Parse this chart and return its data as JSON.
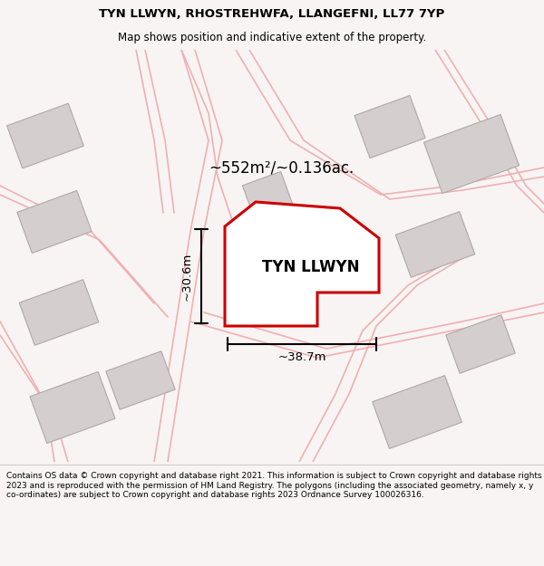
{
  "title_line1": "TYN LLWYN, RHOSTREHWFA, LLANGEFNI, LL77 7YP",
  "title_line2": "Map shows position and indicative extent of the property.",
  "area_label": "~552m²/~0.136ac.",
  "property_name": "TYN LLWYN",
  "dim_height": "~30.6m",
  "dim_width": "~38.7m",
  "footer_text": "Contains OS data © Crown copyright and database right 2021. This information is subject to Crown copyright and database rights 2023 and is reproduced with the permission of HM Land Registry. The polygons (including the associated geometry, namely x, y co-ordinates) are subject to Crown copyright and database rights 2023 Ordnance Survey 100026316.",
  "bg_color": "#f8f4f4",
  "map_bg": "#f8f4f4",
  "property_fill": "#ffffff",
  "property_edge": "#cc0000",
  "road_color": "#f0b0b0",
  "building_fill": "#d4cece",
  "building_edge": "#b0a8a8",
  "title_bg": "#ffffff",
  "footer_bg": "#ffffff"
}
